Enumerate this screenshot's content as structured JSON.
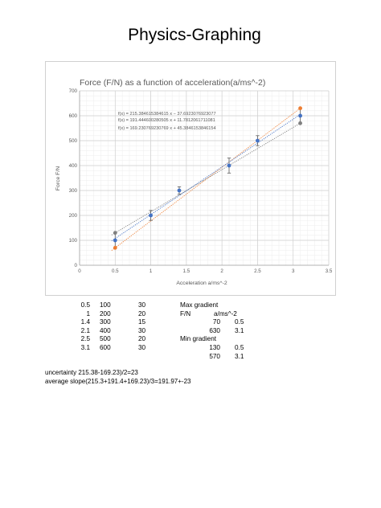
{
  "document": {
    "title": "Physics-Graphing"
  },
  "chart_data": {
    "type": "scatter",
    "title": "Force (F/N) as a function of acceleration(a/ms^-2)",
    "xlabel": "Acceleration a/ms^-2",
    "ylabel": "Force F/N",
    "xlim": [
      0,
      3.5
    ],
    "ylim": [
      0,
      700
    ],
    "x_ticks": [
      "0",
      "0.5",
      "1",
      "1.5",
      "2",
      "2.5",
      "3",
      "3.5"
    ],
    "y_ticks": [
      "0",
      "100",
      "200",
      "300",
      "400",
      "500",
      "600",
      "700"
    ],
    "grid": true,
    "series": [
      {
        "color": "#4472c4",
        "points": [
          [
            0.5,
            100
          ],
          [
            1,
            200
          ],
          [
            1.4,
            300
          ],
          [
            2.1,
            400
          ],
          [
            2.5,
            500
          ],
          [
            3.1,
            600
          ]
        ],
        "errors": [
          30,
          20,
          15,
          30,
          20,
          30
        ]
      },
      {
        "color": "#ed7d31",
        "points": [
          [
            0.5,
            70
          ],
          [
            3.1,
            630
          ]
        ]
      },
      {
        "color": "#808080",
        "points": [
          [
            0.5,
            130
          ],
          [
            3.1,
            570
          ]
        ]
      }
    ],
    "trendlines": [
      {
        "color": "#ed7d31",
        "slope": 215.384615384615,
        "intercept": -37.6923076923077
      },
      {
        "color": "#4472c4",
        "slope": 191.444600280505,
        "intercept": 11.7812061711081
      },
      {
        "color": "#808080",
        "slope": 169.230769230769,
        "intercept": 45.3846153846154
      }
    ],
    "equations": [
      "f(x) = 215.384615384615 x − 37.6923076923077",
      "f(x) = 191.444600280505 x + 11.7812061711081",
      "f(x) = 169.230769230769 x + 45.3846153846154"
    ]
  },
  "data_table": {
    "rows": [
      [
        "0.5",
        "100",
        "30"
      ],
      [
        "1",
        "200",
        "20"
      ],
      [
        "1.4",
        "300",
        "15"
      ],
      [
        "2.1",
        "400",
        "30"
      ],
      [
        "2.5",
        "500",
        "20"
      ],
      [
        "3.1",
        "600",
        "30"
      ]
    ]
  },
  "gradient_table": {
    "max_label": "Max gradient",
    "col_f": "F/N",
    "col_a": "a/ms^-2",
    "max_rows": [
      [
        "70",
        "0.5"
      ],
      [
        "630",
        "3.1"
      ]
    ],
    "min_label": "Min gradient",
    "min_rows": [
      [
        "130",
        "0.5"
      ],
      [
        "570",
        "3.1"
      ]
    ]
  },
  "notes": {
    "uncertainty": "uncertainty 215.38-169.23)/2=23",
    "average": "average slope(215.3+191.4+169.23)/3=191.97+-23"
  }
}
